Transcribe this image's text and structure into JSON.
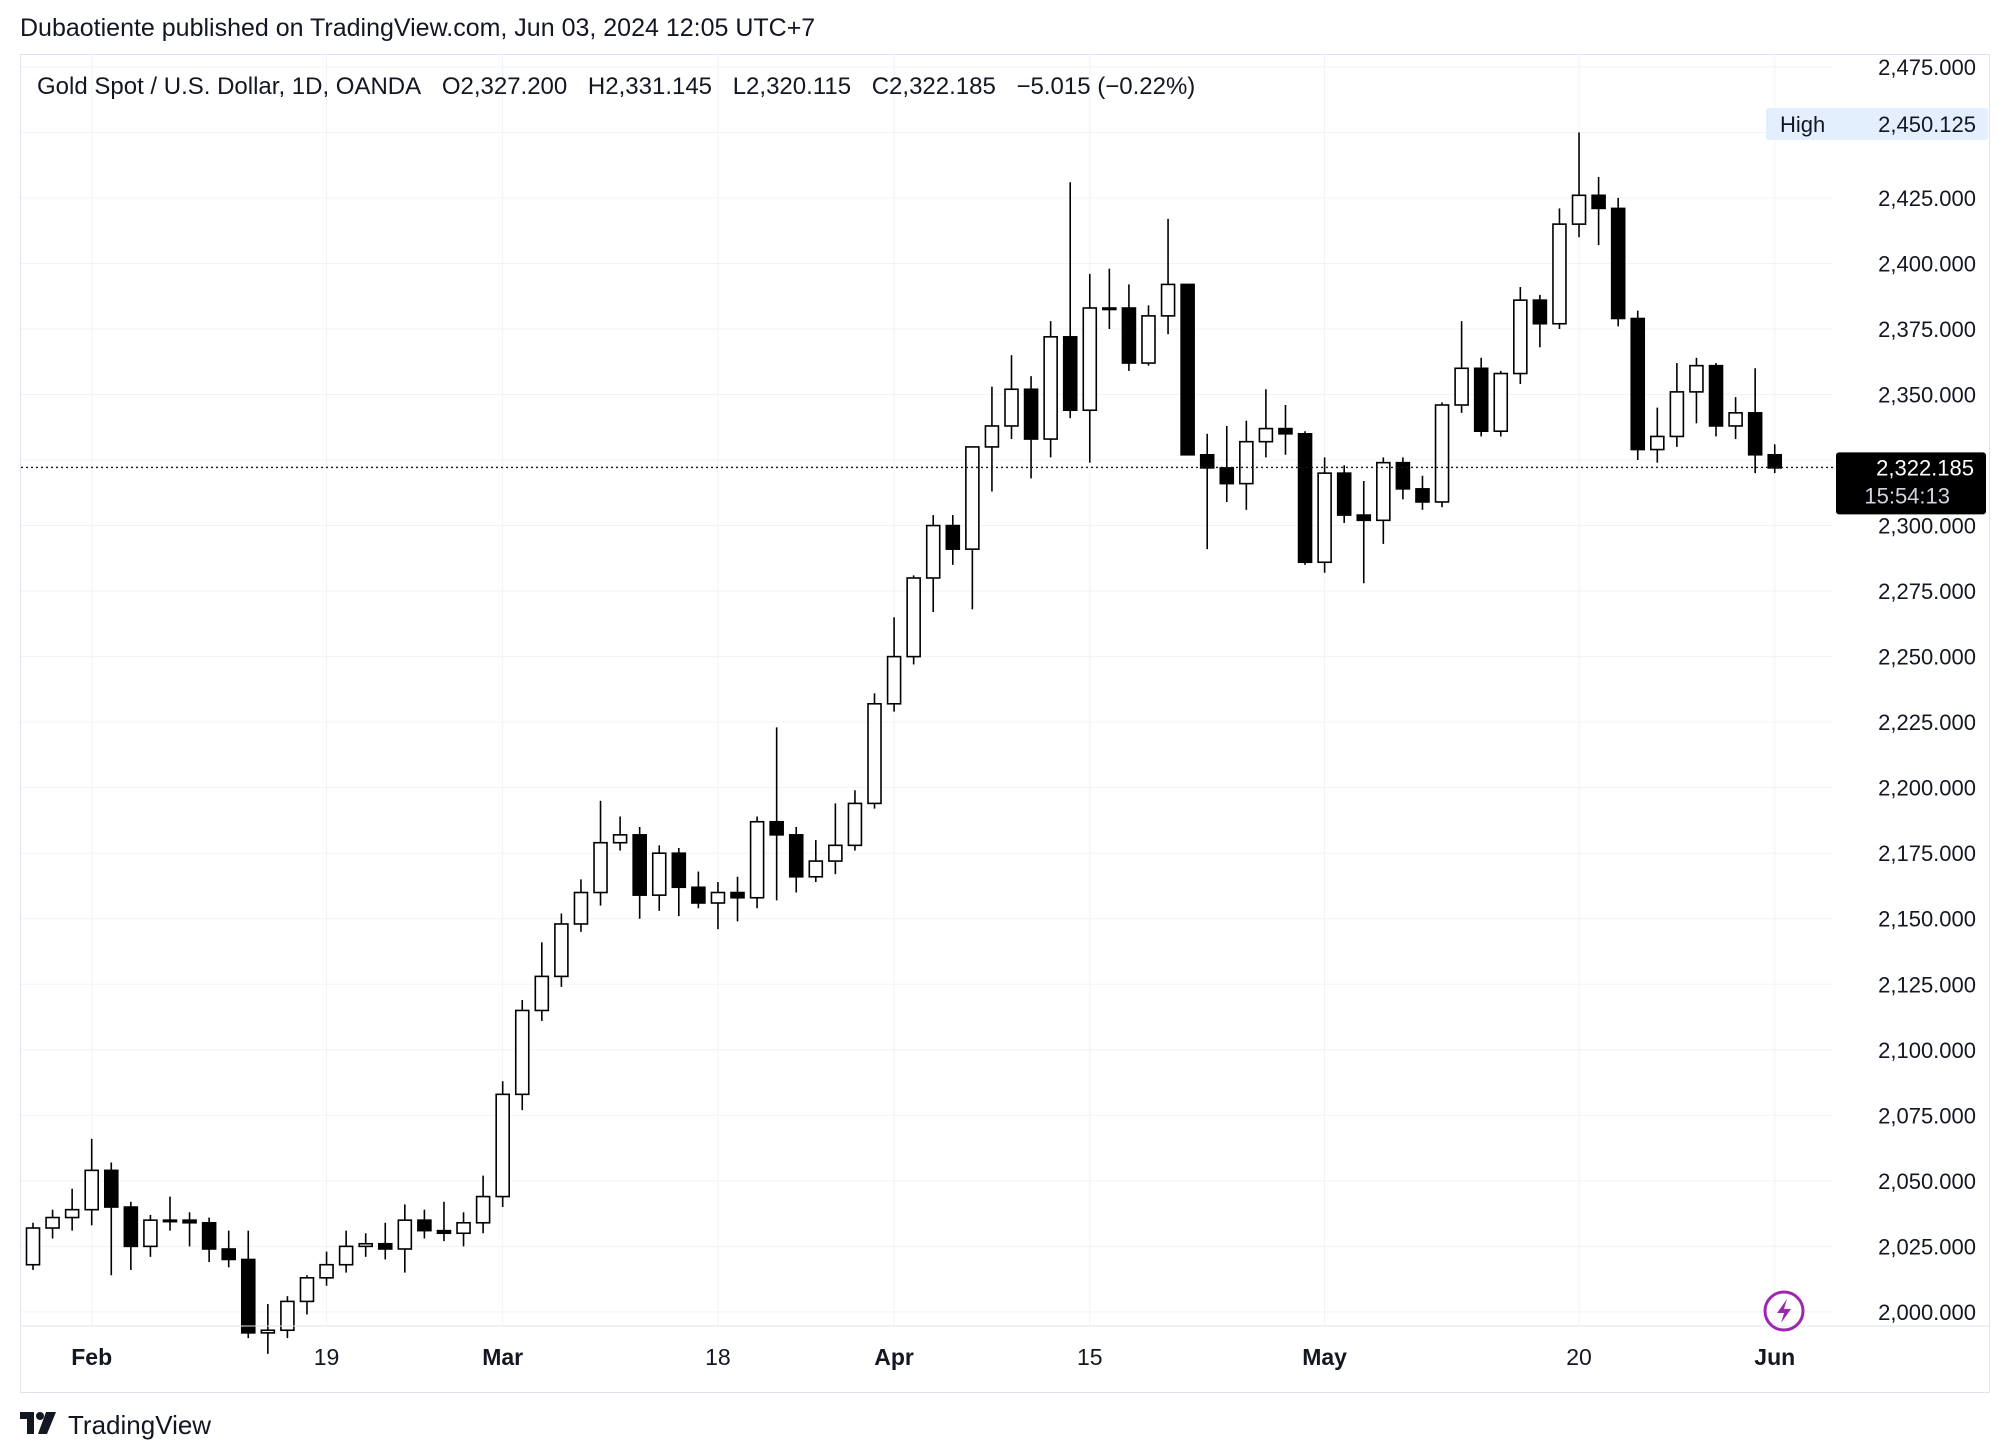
{
  "publisher_line": "Dubaotiente published on TradingView.com, Jun 03, 2024 12:05 UTC+7",
  "legend": {
    "symbol": "Gold Spot / U.S. Dollar, 1D, OANDA",
    "open": "O2,327.200",
    "high": "H2,331.145",
    "low": "L2,320.115",
    "close": "C2,322.185",
    "change": "−5.015 (−0.22%)"
  },
  "badges": {
    "high_label": "High",
    "high_value": "2,450.125",
    "last_price": "2,322.185",
    "countdown": "15:54:13"
  },
  "logo_text": "TradingView",
  "colors": {
    "up_fill": "#ffffff",
    "down_fill": "#000000",
    "wick": "#000000",
    "grid": "#f0f3fa",
    "last_badge_bg": "#000000",
    "high_badge_bg": "#e3effd",
    "flash_icon": "#9c27b0"
  },
  "chart_data": {
    "type": "candlestick",
    "title": "Gold Spot / U.S. Dollar, 1D, OANDA",
    "y_range": [
      1995,
      2478
    ],
    "y_ticks": [
      2000,
      2025,
      2050,
      2075,
      2100,
      2125,
      2150,
      2175,
      2200,
      2225,
      2250,
      2275,
      2300,
      2325,
      2350,
      2375,
      2400,
      2425,
      2450,
      2475
    ],
    "y_tick_labels": [
      "2,000.000",
      "2,025.000",
      "2,050.000",
      "2,075.000",
      "2,100.000",
      "2,125.000",
      "2,150.000",
      "2,175.000",
      "2,200.000",
      "2,225.000",
      "2,250.000",
      "2,275.000",
      "2,300.000",
      "",
      "2,350.000",
      "2,375.000",
      "2,400.000",
      "2,425.000",
      "",
      "2,475.000"
    ],
    "x_labels": [
      {
        "label": "Feb",
        "date": "2024-02-01",
        "bold": true
      },
      {
        "label": "19",
        "date": "2024-02-19",
        "bold": false
      },
      {
        "label": "Mar",
        "date": "2024-03-01",
        "bold": true
      },
      {
        "label": "18",
        "date": "2024-03-18",
        "bold": false
      },
      {
        "label": "Apr",
        "date": "2024-04-01",
        "bold": true
      },
      {
        "label": "15",
        "date": "2024-04-15",
        "bold": false
      },
      {
        "label": "May",
        "date": "2024-05-01",
        "bold": true
      },
      {
        "label": "20",
        "date": "2024-05-20",
        "bold": false
      },
      {
        "label": "Jun",
        "date": "2024-06-03",
        "bold": true
      }
    ],
    "last_price": 2322.185,
    "high_marker": 2450.125,
    "candles": [
      [
        "2024-01-29",
        2018,
        2034,
        2016,
        2032
      ],
      [
        "2024-01-30",
        2032,
        2039,
        2028,
        2036
      ],
      [
        "2024-01-31",
        2036,
        2047,
        2031,
        2039
      ],
      [
        "2024-02-01",
        2039,
        2066,
        2033,
        2054
      ],
      [
        "2024-02-02",
        2054,
        2057,
        2014,
        2040
      ],
      [
        "2024-02-05",
        2040,
        2042,
        2016,
        2025
      ],
      [
        "2024-02-06",
        2025,
        2037,
        2021,
        2035
      ],
      [
        "2024-02-07",
        2035,
        2044,
        2031,
        2035
      ],
      [
        "2024-02-08",
        2035,
        2038,
        2025,
        2034
      ],
      [
        "2024-02-09",
        2034,
        2036,
        2019,
        2024
      ],
      [
        "2024-02-12",
        2024,
        2031,
        2017,
        2020
      ],
      [
        "2024-02-13",
        2020,
        2031,
        1990,
        1992
      ],
      [
        "2024-02-14",
        1992,
        2003,
        1984,
        1993
      ],
      [
        "2024-02-15",
        1993,
        2006,
        1990,
        2004
      ],
      [
        "2024-02-16",
        2004,
        2014,
        1999,
        2013
      ],
      [
        "2024-02-19",
        2013,
        2023,
        2010,
        2018
      ],
      [
        "2024-02-20",
        2018,
        2031,
        2015,
        2025
      ],
      [
        "2024-02-21",
        2025,
        2030,
        2021,
        2026
      ],
      [
        "2024-02-22",
        2026,
        2034,
        2020,
        2024
      ],
      [
        "2024-02-23",
        2024,
        2041,
        2015,
        2035
      ],
      [
        "2024-02-26",
        2035,
        2039,
        2028,
        2031
      ],
      [
        "2024-02-27",
        2031,
        2042,
        2027,
        2030
      ],
      [
        "2024-02-28",
        2030,
        2038,
        2025,
        2034
      ],
      [
        "2024-02-29",
        2034,
        2052,
        2030,
        2044
      ],
      [
        "2024-03-01",
        2044,
        2088,
        2040,
        2083
      ],
      [
        "2024-03-04",
        2083,
        2119,
        2077,
        2115
      ],
      [
        "2024-03-05",
        2115,
        2141,
        2111,
        2128
      ],
      [
        "2024-03-06",
        2128,
        2152,
        2124,
        2148
      ],
      [
        "2024-03-07",
        2148,
        2165,
        2145,
        2160
      ],
      [
        "2024-03-08",
        2160,
        2195,
        2155,
        2179
      ],
      [
        "2024-03-11",
        2179,
        2189,
        2176,
        2182
      ],
      [
        "2024-03-12",
        2182,
        2185,
        2150,
        2159
      ],
      [
        "2024-03-13",
        2159,
        2178,
        2153,
        2175
      ],
      [
        "2024-03-14",
        2175,
        2177,
        2151,
        2162
      ],
      [
        "2024-03-15",
        2162,
        2168,
        2154,
        2156
      ],
      [
        "2024-03-18",
        2156,
        2164,
        2146,
        2160
      ],
      [
        "2024-03-19",
        2160,
        2166,
        2149,
        2158
      ],
      [
        "2024-03-20",
        2158,
        2189,
        2154,
        2187
      ],
      [
        "2024-03-21",
        2187,
        2223,
        2157,
        2182
      ],
      [
        "2024-03-22",
        2182,
        2185,
        2160,
        2166
      ],
      [
        "2024-03-25",
        2166,
        2180,
        2164,
        2172
      ],
      [
        "2024-03-26",
        2172,
        2194,
        2167,
        2178
      ],
      [
        "2024-03-27",
        2178,
        2199,
        2176,
        2194
      ],
      [
        "2024-03-28",
        2194,
        2236,
        2192,
        2232
      ],
      [
        "2024-04-01",
        2232,
        2265,
        2229,
        2250
      ],
      [
        "2024-04-02",
        2250,
        2281,
        2247,
        2280
      ],
      [
        "2024-04-03",
        2280,
        2304,
        2267,
        2300
      ],
      [
        "2024-04-04",
        2300,
        2304,
        2285,
        2291
      ],
      [
        "2024-04-05",
        2291,
        2330,
        2268,
        2330
      ],
      [
        "2024-04-08",
        2330,
        2353,
        2313,
        2338
      ],
      [
        "2024-04-09",
        2338,
        2365,
        2333,
        2352
      ],
      [
        "2024-04-10",
        2352,
        2357,
        2318,
        2333
      ],
      [
        "2024-04-11",
        2333,
        2378,
        2326,
        2372
      ],
      [
        "2024-04-12",
        2372,
        2431,
        2341,
        2344
      ],
      [
        "2024-04-15",
        2344,
        2396,
        2324,
        2383
      ],
      [
        "2024-04-16",
        2383,
        2398,
        2375,
        2383
      ],
      [
        "2024-04-17",
        2383,
        2392,
        2359,
        2362
      ],
      [
        "2024-04-18",
        2362,
        2384,
        2361,
        2380
      ],
      [
        "2024-04-19",
        2380,
        2417,
        2373,
        2392
      ],
      [
        "2024-04-22",
        2392,
        2392,
        2328,
        2327
      ],
      [
        "2024-04-23",
        2327,
        2335,
        2291,
        2322
      ],
      [
        "2024-04-24",
        2322,
        2338,
        2309,
        2316
      ],
      [
        "2024-04-25",
        2316,
        2340,
        2306,
        2332
      ],
      [
        "2024-04-26",
        2332,
        2352,
        2326,
        2337
      ],
      [
        "2024-04-29",
        2337,
        2346,
        2327,
        2335
      ],
      [
        "2024-04-30",
        2335,
        2336,
        2285,
        2286
      ],
      [
        "2024-05-01",
        2286,
        2326,
        2282,
        2320
      ],
      [
        "2024-05-02",
        2320,
        2323,
        2301,
        2304
      ],
      [
        "2024-05-03",
        2304,
        2317,
        2278,
        2302
      ],
      [
        "2024-05-06",
        2302,
        2326,
        2293,
        2324
      ],
      [
        "2024-05-07",
        2324,
        2326,
        2310,
        2314
      ],
      [
        "2024-05-08",
        2314,
        2319,
        2306,
        2309
      ],
      [
        "2024-05-09",
        2309,
        2347,
        2307,
        2346
      ],
      [
        "2024-05-10",
        2346,
        2378,
        2343,
        2360
      ],
      [
        "2024-05-13",
        2360,
        2364,
        2334,
        2336
      ],
      [
        "2024-05-14",
        2336,
        2359,
        2334,
        2358
      ],
      [
        "2024-05-15",
        2358,
        2391,
        2354,
        2386
      ],
      [
        "2024-05-16",
        2386,
        2388,
        2368,
        2377
      ],
      [
        "2024-05-17",
        2377,
        2421,
        2375,
        2415
      ],
      [
        "2024-05-20",
        2415,
        2450,
        2410,
        2426
      ],
      [
        "2024-05-21",
        2426,
        2433,
        2407,
        2421
      ],
      [
        "2024-05-22",
        2421,
        2425,
        2376,
        2379
      ],
      [
        "2024-05-23",
        2379,
        2382,
        2325,
        2329
      ],
      [
        "2024-05-24",
        2329,
        2345,
        2324,
        2334
      ],
      [
        "2024-05-27",
        2334,
        2362,
        2330,
        2351
      ],
      [
        "2024-05-28",
        2351,
        2364,
        2339,
        2361
      ],
      [
        "2024-05-29",
        2361,
        2362,
        2334,
        2338
      ],
      [
        "2024-05-30",
        2338,
        2349,
        2333,
        2343
      ],
      [
        "2024-05-31",
        2343,
        2360,
        2320,
        2327
      ],
      [
        "2024-06-03",
        2327,
        2331,
        2320,
        2322
      ]
    ]
  }
}
